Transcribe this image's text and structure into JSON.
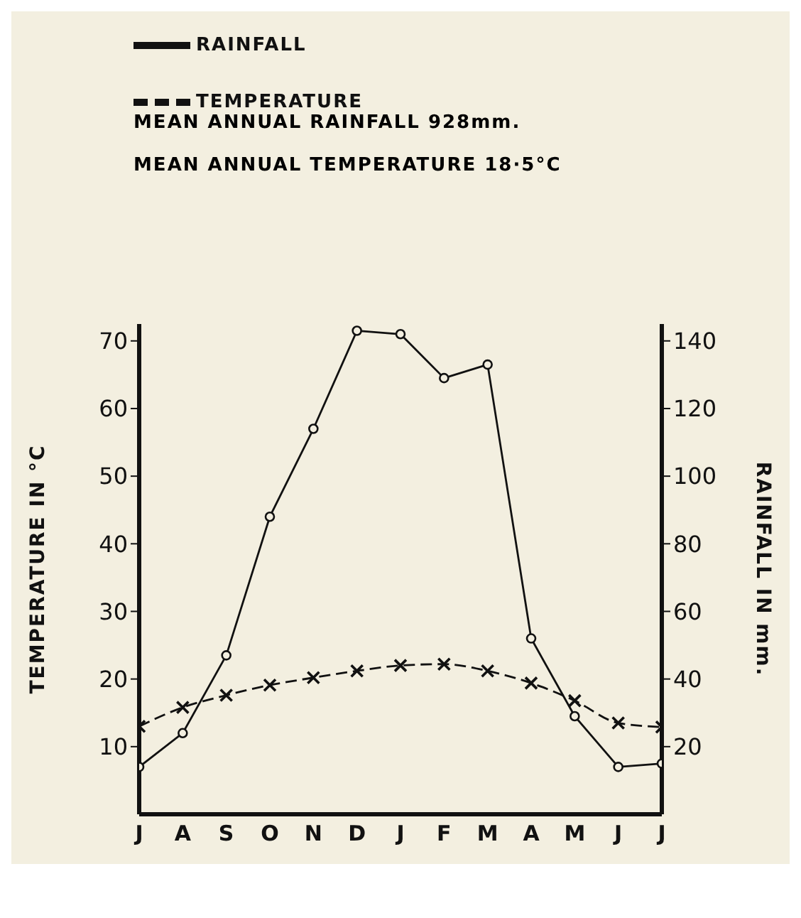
{
  "chart_data": {
    "type": "line",
    "categories": [
      "J",
      "A",
      "S",
      "O",
      "N",
      "D",
      "J",
      "F",
      "M",
      "A",
      "M",
      "J",
      "J"
    ],
    "series": [
      {
        "name": "RAINFALL",
        "axis": "y2",
        "color": "#111111",
        "marker": "circle",
        "line_style": "solid",
        "values": [
          14,
          24,
          47,
          88,
          114,
          143,
          142,
          129,
          133,
          52,
          29,
          14,
          15
        ]
      },
      {
        "name": "TEMPERATURE",
        "color": "#111111",
        "marker": "cross",
        "line_style": "dashed",
        "values": [
          13,
          15.8,
          17.6,
          19.1,
          20.2,
          21.2,
          22,
          22.2,
          21.2,
          19.4,
          16.8,
          13.5,
          12.9
        ]
      }
    ],
    "annotations": [
      "MEAN ANNUAL RAINFALL 928mm.",
      "MEAN ANNUAL TEMPERATURE 18·5°C"
    ],
    "ylabel": "TEMPERATURE IN °C",
    "y2label": "RAINFALL IN mm.",
    "ylim": [
      0,
      72.5
    ],
    "yticks": [
      10,
      20,
      30,
      40,
      50,
      60,
      70
    ],
    "y2lim": [
      0,
      145
    ],
    "y2ticks": [
      20,
      40,
      60,
      80,
      100,
      120,
      140
    ],
    "legend": "top"
  }
}
